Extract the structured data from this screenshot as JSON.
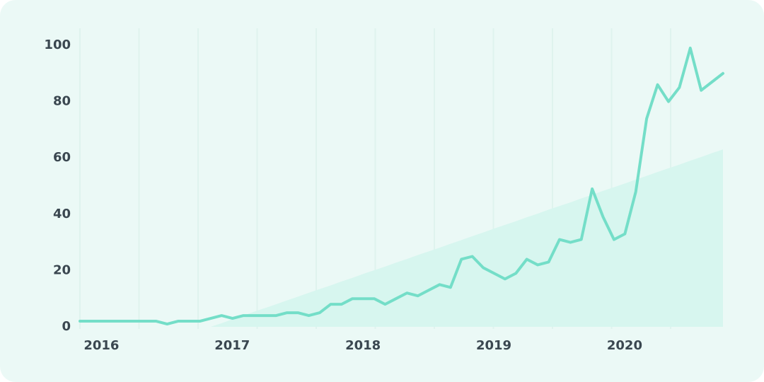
{
  "chart_data": {
    "type": "line",
    "categories": [
      null,
      "2016",
      null,
      null,
      null,
      null,
      null,
      null,
      null,
      null,
      null,
      null,
      null,
      "2017",
      null,
      null,
      null,
      null,
      null,
      null,
      null,
      null,
      null,
      null,
      null,
      "2018",
      null,
      null,
      null,
      null,
      null,
      null,
      null,
      null,
      null,
      null,
      null,
      "2019",
      null,
      null,
      null,
      null,
      null,
      null,
      null,
      null,
      null,
      null,
      null,
      "2020",
      null,
      null,
      null,
      null,
      null,
      null,
      null,
      null,
      null,
      null
    ],
    "series": [
      {
        "kind": "area",
        "color": "#d7f6ef",
        "values": [
          null,
          null,
          null,
          null,
          null,
          null,
          null,
          null,
          null,
          null,
          null,
          null,
          0,
          1.3,
          2.7,
          4,
          5.4,
          6.7,
          8,
          9.4,
          10.7,
          12.1,
          13.4,
          14.7,
          16.1,
          17.4,
          18.8,
          20.1,
          21.4,
          22.8,
          24.1,
          25.5,
          26.8,
          28.1,
          29.5,
          30.8,
          32.2,
          33.5,
          34.9,
          36.2,
          37.5,
          38.9,
          40.2,
          41.6,
          42.9,
          44.2,
          45.6,
          46.9,
          48.3,
          49.6,
          50.9,
          52.3,
          53.6,
          55,
          56.3,
          57.6,
          59,
          60.3,
          61.7,
          63
        ]
      },
      {
        "kind": "line",
        "color": "#74dec8",
        "values": [
          2,
          2,
          2,
          2,
          2,
          2,
          2,
          2,
          1,
          2,
          2,
          2,
          3,
          4,
          3,
          4,
          4,
          4,
          4,
          5,
          5,
          4,
          5,
          8,
          8,
          10,
          10,
          10,
          8,
          10,
          12,
          11,
          13,
          15,
          14,
          24,
          25,
          21,
          19,
          17,
          19,
          24,
          22,
          23,
          31,
          30,
          31,
          49,
          39,
          31,
          33,
          48,
          74,
          86,
          80,
          85,
          99,
          84,
          87,
          90
        ]
      }
    ],
    "ylim": [
      0,
      100
    ],
    "yticks": [
      0,
      20,
      40,
      60,
      80,
      100
    ]
  }
}
